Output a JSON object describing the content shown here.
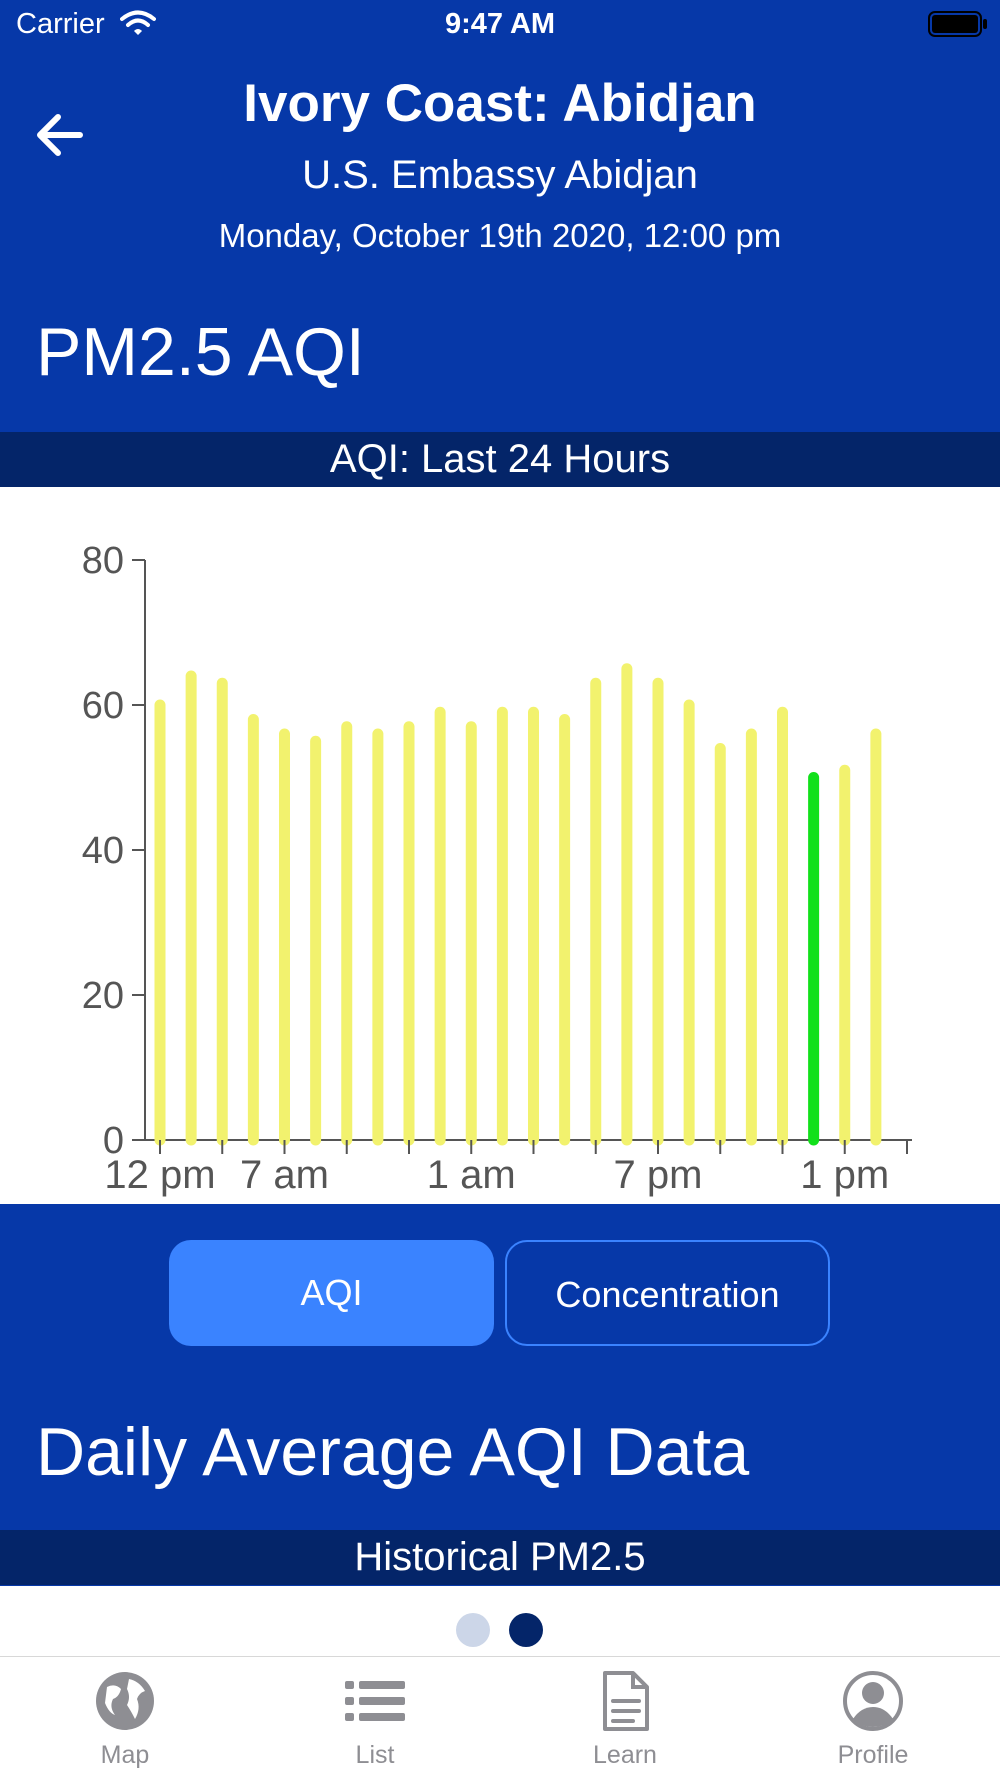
{
  "status_bar": {
    "carrier": "Carrier",
    "time": "9:47 AM"
  },
  "header": {
    "title": "Ivory Coast: Abidjan",
    "subtitle": "U.S. Embassy Abidjan",
    "datetime": "Monday, October 19th 2020, 12:00 pm"
  },
  "section_pm": {
    "title": "PM2.5 AQI",
    "band": "AQI: Last 24 Hours"
  },
  "chart_data": {
    "type": "bar",
    "ylim": [
      0,
      80
    ],
    "yticks": [
      "0",
      "20",
      "40",
      "60",
      "80"
    ],
    "xtick_labels": [
      "12 pm",
      "7 am",
      "1 am",
      "7 pm",
      "1 pm"
    ],
    "values": [
      60,
      64,
      63,
      58,
      56,
      55,
      57,
      56,
      57,
      59,
      57,
      59,
      59,
      58,
      63,
      65,
      63,
      60,
      54,
      56,
      59,
      50,
      51,
      56
    ],
    "highlight_index": 21,
    "colors": {
      "default": "#F2F26E",
      "highlight": "#11E01A",
      "axis": "#555555"
    },
    "grid": false
  },
  "toggle": {
    "aqi_label": "AQI",
    "concentration_label": "Concentration",
    "selected": "AQI"
  },
  "section_daily": {
    "title": "Daily Average AQI Data",
    "band": "Historical PM2.5"
  },
  "pagination": {
    "count": 2,
    "active": 2
  },
  "tab_bar": {
    "items": [
      {
        "label": "Map",
        "icon": "globe-icon"
      },
      {
        "label": "List",
        "icon": "list-icon"
      },
      {
        "label": "Learn",
        "icon": "document-icon"
      },
      {
        "label": "Profile",
        "icon": "profile-icon"
      }
    ]
  },
  "colors": {
    "brand_blue": "#0638A8",
    "band_navy": "#042569",
    "accent": "#3A83FF"
  }
}
